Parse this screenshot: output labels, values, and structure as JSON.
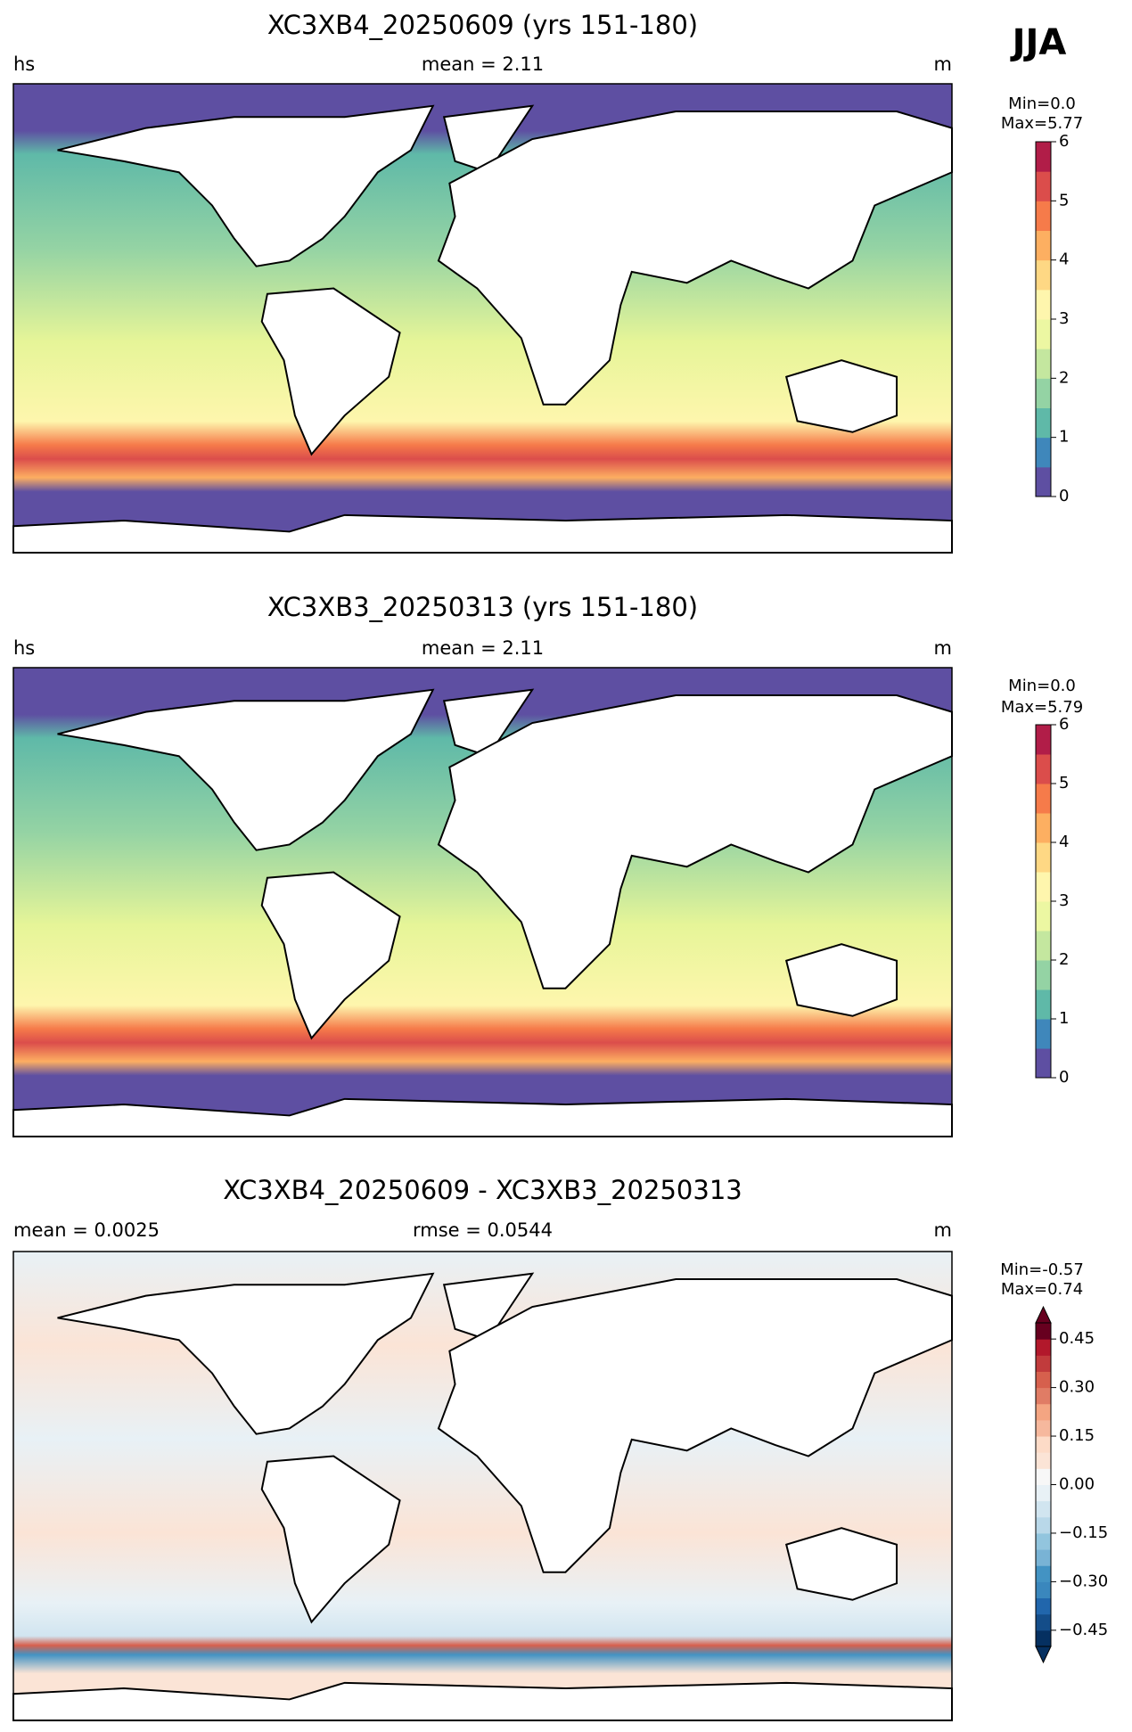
{
  "season": "JJA",
  "chart_data": [
    {
      "type": "map",
      "title": "XC3XB4_20250609 (yrs 151-180)",
      "left_label": "hs",
      "center_label": "mean = 2.11",
      "right_label": "m",
      "min_label": "Min=0.0",
      "max_label": "Max=5.77",
      "clim": [
        0,
        6
      ],
      "cticks": [
        0,
        1,
        2,
        3,
        4,
        5,
        6
      ],
      "extend": "neither",
      "colors": [
        "#5e4fa2",
        "#3f87bb",
        "#5fb9a8",
        "#94d3a4",
        "#c4e79f",
        "#ecf7a2",
        "#fef6ad",
        "#fed884",
        "#fdaf61",
        "#f67b4a",
        "#db4d4b",
        "#b11d48"
      ]
    },
    {
      "type": "map",
      "title": "XC3XB3_20250313 (yrs 151-180)",
      "left_label": "hs",
      "center_label": "mean = 2.11",
      "right_label": "m",
      "min_label": "Min=0.0",
      "max_label": "Max=5.79",
      "clim": [
        0,
        6
      ],
      "cticks": [
        0,
        1,
        2,
        3,
        4,
        5,
        6
      ],
      "extend": "neither",
      "colors": [
        "#5e4fa2",
        "#3f87bb",
        "#5fb9a8",
        "#94d3a4",
        "#c4e79f",
        "#ecf7a2",
        "#fef6ad",
        "#fed884",
        "#fdaf61",
        "#f67b4a",
        "#db4d4b",
        "#b11d48"
      ]
    },
    {
      "type": "map",
      "title": "XC3XB4_20250609 - XC3XB3_20250313",
      "left_label": "mean = 0.0025",
      "center_label": "rmse = 0.0544",
      "right_label": "m",
      "min_label": "Min=-0.57",
      "max_label": "Max=0.74",
      "clim": [
        -0.5,
        0.5
      ],
      "cticks": [
        {
          "value": -0.45,
          "label": "−0.45"
        },
        {
          "value": -0.3,
          "label": "−0.30"
        },
        {
          "value": -0.15,
          "label": "−0.15"
        },
        {
          "value": 0,
          "label": "0.00"
        },
        0.15,
        {
          "value": 0.3,
          "label": "0.30"
        },
        0.45
      ],
      "extend": "both",
      "colors": [
        "#053061",
        "#144d89",
        "#2166ac",
        "#3a87bd",
        "#4393c3",
        "#79b3d5",
        "#92c5de",
        "#b9d8e9",
        "#d1e5f0",
        "#e8f1f6",
        "#f7f7f7",
        "#fbe4d6",
        "#fddbc7",
        "#f6b89d",
        "#f4a582",
        "#e07c65",
        "#d6604d",
        "#c13b3c",
        "#b2182b",
        "#67001f"
      ]
    }
  ]
}
